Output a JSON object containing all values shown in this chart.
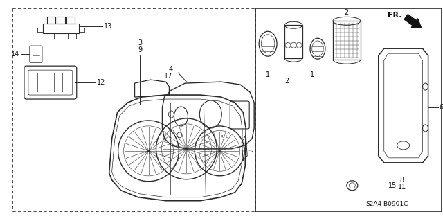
{
  "bg_color": "#ffffff",
  "fig_width": 6.4,
  "fig_height": 3.19,
  "dpi": 100,
  "diagram_code": "S2A4-B0901C",
  "line_color": "#2a2a2a",
  "text_color": "#111111"
}
